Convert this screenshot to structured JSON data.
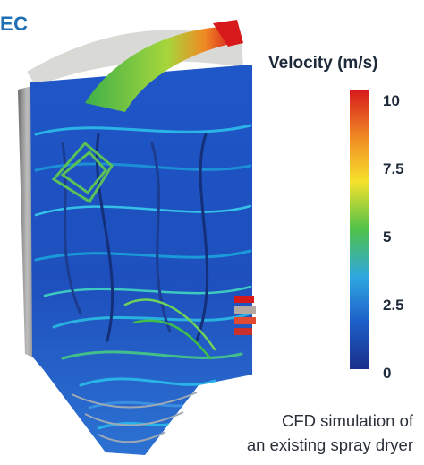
{
  "brand": {
    "corner_text": "EC",
    "color": "#1f6fb5"
  },
  "legend": {
    "title": "Velocity (m/s)",
    "ticks": [
      "10",
      "7.5",
      "5",
      "2.5",
      "0"
    ],
    "colors": [
      "#d7191c",
      "#f08a24",
      "#f6e22b",
      "#4fc24a",
      "#2fa8e0",
      "#1d5fc9",
      "#1a2f8a"
    ]
  },
  "caption": {
    "line1": "CFD simulation of",
    "line2": "an existing spray dryer"
  }
}
